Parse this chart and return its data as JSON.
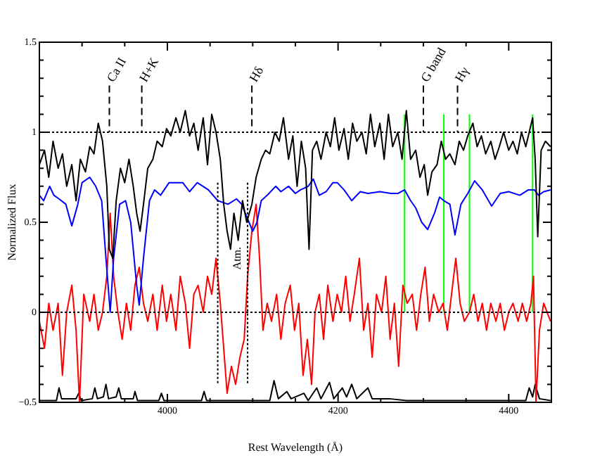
{
  "chart_data": {
    "type": "line",
    "xlabel": "Rest Wavelength (Å)",
    "ylabel": "Normalized Flux",
    "xlim": [
      3850,
      4450
    ],
    "ylim": [
      -0.5,
      1.5
    ],
    "xticks": [
      {
        "value": 3900,
        "label": null
      },
      {
        "value": 3950,
        "label": null
      },
      4000,
      {
        "value": 4050,
        "label": null
      },
      {
        "value": 4100,
        "label": null
      },
      {
        "value": 4150,
        "label": null
      },
      4200,
      {
        "value": 4250,
        "label": null
      },
      {
        "value": 4300,
        "label": null
      },
      {
        "value": 4350,
        "label": null
      },
      4400
    ],
    "yticks": [
      {
        "value": -0.5,
        "label": "−0.5"
      },
      {
        "value": -0.4,
        "label": null
      },
      {
        "value": -0.3,
        "label": null
      },
      {
        "value": -0.2,
        "label": null
      },
      {
        "value": -0.1,
        "label": null
      },
      0,
      {
        "value": 0.1,
        "label": null
      },
      {
        "value": 0.2,
        "label": null
      },
      {
        "value": 0.3,
        "label": null
      },
      {
        "value": 0.4,
        "label": null
      },
      0.5,
      {
        "value": 0.6,
        "label": null
      },
      {
        "value": 0.7,
        "label": null
      },
      {
        "value": 0.8,
        "label": null
      },
      {
        "value": 0.9,
        "label": null
      },
      1,
      {
        "value": 1.1,
        "label": null
      },
      {
        "value": 1.2,
        "label": null
      },
      {
        "value": 1.3,
        "label": null
      },
      {
        "value": 1.4,
        "label": null
      },
      1.5
    ],
    "grid": false,
    "legend": false,
    "marker": "none",
    "line_style": "solid",
    "series": [
      {
        "color": "#000000",
        "x": [
          3850,
          3856,
          3861,
          3866,
          3872,
          3877,
          3882,
          3888,
          3893,
          3898,
          3904,
          3909,
          3914,
          3919,
          3924,
          3929,
          3932,
          3936,
          3940,
          3945,
          3950,
          3955,
          3960,
          3964,
          3968,
          3972,
          3977,
          3983,
          3988,
          3994,
          3999,
          4004,
          4010,
          4015,
          4021,
          4026,
          4031,
          4036,
          4042,
          4047,
          4052,
          4057,
          4062,
          4066,
          4070,
          4074,
          4078,
          4083,
          4088,
          4093,
          4099,
          4104,
          4110,
          4115,
          4120,
          4126,
          4131,
          4136,
          4142,
          4147,
          4152,
          4157,
          4162,
          4166,
          4170,
          4175,
          4180,
          4186,
          4191,
          4196,
          4201,
          4207,
          4212,
          4217,
          4222,
          4228,
          4233,
          4238,
          4243,
          4249,
          4254,
          4259,
          4264,
          4270,
          4275,
          4280,
          4285,
          4291,
          4296,
          4301,
          4305,
          4310,
          4316,
          4321,
          4326,
          4331,
          4337,
          4342,
          4347,
          4352,
          4358,
          4363,
          4368,
          4373,
          4379,
          4384,
          4389,
          4394,
          4400,
          4405,
          4410,
          4415,
          4420,
          4425,
          4428,
          4431,
          4434,
          4438,
          4443,
          4449
        ],
        "values": [
          0.82,
          0.9,
          0.75,
          0.95,
          0.8,
          0.88,
          0.7,
          0.82,
          0.62,
          0.85,
          0.78,
          0.92,
          0.88,
          1.05,
          0.95,
          0.7,
          0.35,
          0.3,
          0.62,
          0.8,
          0.72,
          0.85,
          0.7,
          0.55,
          0.45,
          0.6,
          0.8,
          0.85,
          0.95,
          0.92,
          1.02,
          0.98,
          1.08,
          1.0,
          1.12,
          0.98,
          1.05,
          0.9,
          1.08,
          0.82,
          1.1,
          1.0,
          0.85,
          0.6,
          0.45,
          0.35,
          0.55,
          0.4,
          0.62,
          0.5,
          0.6,
          0.75,
          0.85,
          0.9,
          0.88,
          1.0,
          0.95,
          1.08,
          0.85,
          0.98,
          0.7,
          0.95,
          0.8,
          0.35,
          0.9,
          0.95,
          0.85,
          1.0,
          0.92,
          1.08,
          0.9,
          1.02,
          0.85,
          1.05,
          0.95,
          1.0,
          0.88,
          1.1,
          0.92,
          1.05,
          0.85,
          1.1,
          0.92,
          1.0,
          0.85,
          1.12,
          0.85,
          0.9,
          0.75,
          0.82,
          0.65,
          0.78,
          0.82,
          0.95,
          0.85,
          0.88,
          0.82,
          0.95,
          0.9,
          0.98,
          1.05,
          0.92,
          0.98,
          0.88,
          0.95,
          0.85,
          0.92,
          1.0,
          0.9,
          0.95,
          0.88,
          1.0,
          0.92,
          1.02,
          1.08,
          0.85,
          0.42,
          0.9,
          0.95,
          0.92
        ]
      },
      {
        "color": "#0000ff",
        "x": [
          3850,
          3855,
          3862,
          3867,
          3873,
          3881,
          3888,
          3895,
          3900,
          3909,
          3916,
          3923,
          3928,
          3933,
          3937,
          3944,
          3951,
          3957,
          3964,
          3967,
          3972,
          3979,
          3985,
          3992,
          4002,
          4018,
          4026,
          4035,
          4048,
          4059,
          4071,
          4081,
          4087,
          4094,
          4100,
          4105,
          4110,
          4117,
          4127,
          4133,
          4142,
          4150,
          4156,
          4165,
          4171,
          4178,
          4186,
          4194,
          4199,
          4207,
          4216,
          4226,
          4235,
          4249,
          4262,
          4270,
          4278,
          4285,
          4291,
          4298,
          4305,
          4313,
          4319,
          4324,
          4331,
          4337,
          4344,
          4352,
          4360,
          4369,
          4380,
          4390,
          4400,
          4413,
          4423,
          4430,
          4435,
          4441,
          4449
        ],
        "values": [
          0.65,
          0.62,
          0.7,
          0.65,
          0.63,
          0.6,
          0.48,
          0.6,
          0.72,
          0.75,
          0.7,
          0.62,
          0.3,
          0.0,
          0.3,
          0.6,
          0.62,
          0.5,
          0.15,
          0.04,
          0.3,
          0.62,
          0.68,
          0.65,
          0.72,
          0.72,
          0.67,
          0.72,
          0.68,
          0.62,
          0.6,
          0.63,
          0.6,
          0.52,
          0.45,
          0.5,
          0.62,
          0.65,
          0.7,
          0.67,
          0.7,
          0.66,
          0.68,
          0.7,
          0.74,
          0.65,
          0.67,
          0.72,
          0.72,
          0.68,
          0.62,
          0.67,
          0.66,
          0.67,
          0.66,
          0.66,
          0.68,
          0.62,
          0.58,
          0.5,
          0.46,
          0.55,
          0.64,
          0.62,
          0.6,
          0.43,
          0.6,
          0.66,
          0.73,
          0.68,
          0.59,
          0.66,
          0.67,
          0.65,
          0.68,
          0.68,
          0.65,
          0.67,
          0.68
        ]
      },
      {
        "color": "#ff0000",
        "x": [
          3850,
          3856,
          3861,
          3866,
          3872,
          3877,
          3882,
          3888,
          3893,
          3897,
          3902,
          3909,
          3914,
          3919,
          3924,
          3929,
          3933,
          3937,
          3942,
          3947,
          3952,
          3957,
          3962,
          3967,
          3972,
          3977,
          3983,
          3988,
          3994,
          3999,
          4004,
          4010,
          4015,
          4021,
          4026,
          4031,
          4036,
          4042,
          4047,
          4052,
          4057,
          4062,
          4066,
          4070,
          4075,
          4080,
          4085,
          4090,
          4094,
          4099,
          4104,
          4108,
          4112,
          4117,
          4122,
          4128,
          4133,
          4138,
          4144,
          4149,
          4154,
          4159,
          4164,
          4169,
          4173,
          4178,
          4183,
          4188,
          4194,
          4199,
          4204,
          4209,
          4214,
          4219,
          4225,
          4230,
          4235,
          4240,
          4245,
          4251,
          4256,
          4261,
          4266,
          4271,
          4276,
          4281,
          4287,
          4292,
          4297,
          4302,
          4307,
          4312,
          4318,
          4323,
          4328,
          4333,
          4338,
          4343,
          4348,
          4354,
          4359,
          4364,
          4369,
          4374,
          4379,
          4385,
          4390,
          4395,
          4400,
          4405,
          4411,
          4416,
          4421,
          4426,
          4429,
          4432,
          4436,
          4441,
          4449
        ],
        "values": [
          -0.05,
          -0.2,
          0.05,
          -0.1,
          0.05,
          -0.35,
          0.0,
          0.15,
          -0.1,
          -0.5,
          0.1,
          -0.05,
          0.1,
          -0.1,
          0.0,
          0.2,
          0.55,
          0.2,
          0.0,
          -0.15,
          0.05,
          -0.1,
          0.15,
          0.25,
          0.05,
          -0.05,
          0.1,
          -0.1,
          0.15,
          -0.05,
          0.1,
          -0.1,
          0.2,
          0.05,
          -0.2,
          0.1,
          0.15,
          0.0,
          0.2,
          0.1,
          0.3,
          0.05,
          -0.2,
          -0.45,
          -0.3,
          -0.4,
          -0.25,
          -0.15,
          0.2,
          0.45,
          0.6,
          0.3,
          -0.1,
          0.05,
          -0.05,
          0.1,
          -0.15,
          0.05,
          0.15,
          -0.1,
          0.05,
          -0.35,
          -0.15,
          -0.4,
          0.0,
          0.1,
          -0.15,
          0.15,
          -0.05,
          0.1,
          0.0,
          0.2,
          -0.05,
          0.1,
          0.3,
          -0.1,
          0.05,
          -0.25,
          0.1,
          0.0,
          0.2,
          -0.15,
          0.05,
          -0.3,
          0.15,
          0.05,
          0.1,
          -0.1,
          0.1,
          0.25,
          -0.05,
          0.1,
          0.0,
          0.05,
          -0.1,
          0.1,
          0.3,
          0.05,
          -0.05,
          0.0,
          0.1,
          -0.05,
          0.05,
          -0.1,
          0.05,
          -0.05,
          0.05,
          -0.1,
          0.0,
          0.05,
          -0.05,
          0.05,
          -0.05,
          0.05,
          0.2,
          -0.5,
          -0.1,
          0.05,
          -0.05
        ]
      },
      {
        "color": "#000000",
        "x": [
          3850,
          3870,
          3873,
          3876,
          3893,
          3896,
          3899,
          3912,
          3915,
          3918,
          3925,
          3928,
          3931,
          3940,
          3943,
          3946,
          3960,
          3962,
          3965,
          3990,
          3993,
          3996,
          4040,
          4043,
          4046,
          4070,
          4120,
          4125,
          4130,
          4140,
          4145,
          4160,
          4165,
          4175,
          4180,
          4190,
          4195,
          4205,
          4210,
          4216,
          4222,
          4235,
          4240,
          4260,
          4280,
          4300,
          4420,
          4424,
          4428,
          4431,
          4436,
          4449
        ],
        "values": [
          -0.49,
          -0.49,
          -0.42,
          -0.48,
          -0.48,
          -0.45,
          -0.49,
          -0.48,
          -0.42,
          -0.48,
          -0.47,
          -0.4,
          -0.48,
          -0.47,
          -0.42,
          -0.48,
          -0.48,
          -0.44,
          -0.49,
          -0.49,
          -0.45,
          -0.49,
          -0.49,
          -0.44,
          -0.49,
          -0.49,
          -0.49,
          -0.38,
          -0.48,
          -0.44,
          -0.48,
          -0.45,
          -0.49,
          -0.42,
          -0.48,
          -0.39,
          -0.48,
          -0.42,
          -0.47,
          -0.4,
          -0.48,
          -0.42,
          -0.48,
          -0.48,
          -0.49,
          -0.49,
          -0.49,
          -0.42,
          -0.47,
          -0.4,
          -0.48,
          -0.49
        ]
      },
      {
        "color": "#00ff00",
        "x": [
          4278,
          4278,
          4279,
          4324,
          4324,
          4325,
          4354,
          4354,
          4355,
          4428,
          4428
        ],
        "values": [
          0,
          1.1,
          null,
          0,
          1.1,
          null,
          0,
          1.1,
          null,
          0,
          1.1
        ]
      }
    ],
    "ref_lines": [
      {
        "axis": "y",
        "value": 1,
        "color": "#000000",
        "line_style": "dotted"
      },
      {
        "axis": "y",
        "value": 0,
        "color": "#000000",
        "line_style": "dotted"
      },
      {
        "axis": "x",
        "value": 3932,
        "label": "Ca II",
        "color": "#000000",
        "line_style": "dashed"
      },
      {
        "axis": "x",
        "value": 3970,
        "label": "H+K",
        "color": "#000000",
        "line_style": "dashed"
      },
      {
        "axis": "x",
        "value": 4099,
        "label": "Hδ",
        "color": "#000000",
        "line_style": "dashed"
      },
      {
        "axis": "x",
        "value": 4300,
        "label": "G band",
        "color": "#000000",
        "line_style": "dashed"
      },
      {
        "axis": "x",
        "value": 4340,
        "label": "Hγ",
        "color": "#000000",
        "line_style": "dashed"
      },
      {
        "axis": "x",
        "value": 4059,
        "color": "#000000",
        "line_style": "dotted"
      },
      {
        "axis": "x",
        "value": 4094,
        "label": "Atm.",
        "color": "#000000",
        "line_style": "dotted"
      }
    ]
  }
}
